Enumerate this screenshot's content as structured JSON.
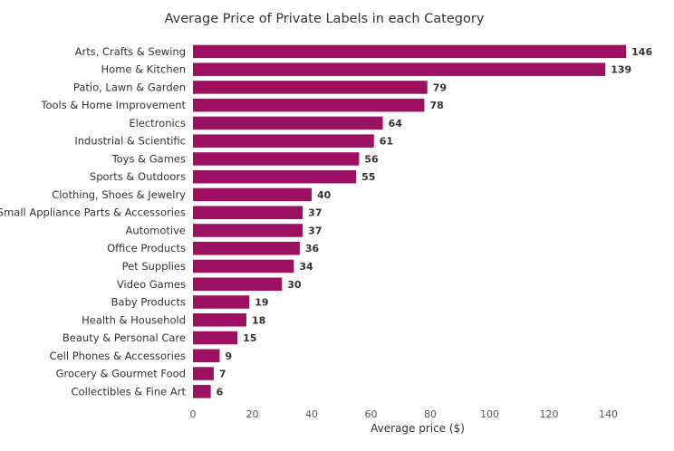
{
  "chart_data": {
    "type": "bar",
    "orientation": "horizontal",
    "title": "Average Price of Private Labels in each Category",
    "xlabel": "Average price ($)",
    "ylabel": "",
    "xlim": [
      0,
      146
    ],
    "xticks": [
      0,
      20,
      40,
      60,
      80,
      100,
      120,
      140
    ],
    "grid": false,
    "bar_color": "#9B1060",
    "categories": [
      "Arts, Crafts & Sewing",
      "Home & Kitchen",
      "Patio, Lawn & Garden",
      "Tools & Home Improvement",
      "Electronics",
      "Industrial & Scientific",
      "Toys & Games",
      "Sports & Outdoors",
      "Clothing, Shoes & Jewelry",
      "Small Appliance Parts & Accessories",
      "Automotive",
      "Office Products",
      "Pet Supplies",
      "Video Games",
      "Baby Products",
      "Health & Household",
      "Beauty & Personal Care",
      "Cell Phones & Accessories",
      "Grocery & Gourmet Food",
      "Collectibles & Fine Art"
    ],
    "values": [
      146,
      139,
      79,
      78,
      64,
      61,
      56,
      55,
      40,
      37,
      37,
      36,
      34,
      30,
      19,
      18,
      15,
      9,
      7,
      6
    ]
  }
}
